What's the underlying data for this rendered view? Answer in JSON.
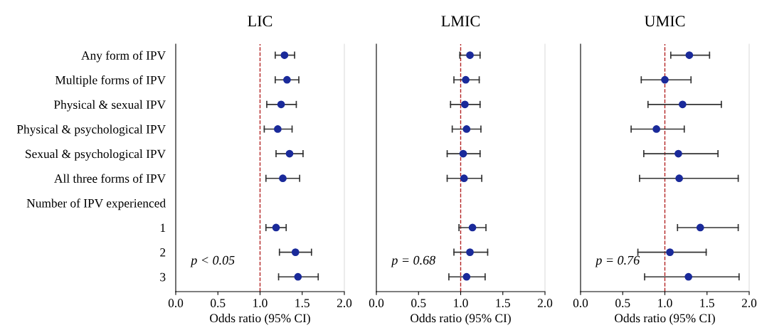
{
  "chart_data": [
    {
      "type": "scatter",
      "title": "LIC",
      "xlabel": "Odds ratio (95% CI)",
      "orientation": "horizontal",
      "marker": "circle",
      "categories": [
        "Any form of IPV",
        "Multiple forms of IPV",
        "Physical & sexual IPV",
        "Physical & psychological IPV",
        "Sexual & psychological IPV",
        "All three forms of IPV",
        "Number of IPV experienced",
        "1",
        "2",
        "3"
      ],
      "series": [
        {
          "color": "#1a2a9a",
          "values": [
            1.29,
            1.32,
            1.25,
            1.21,
            1.35,
            1.27,
            null,
            1.19,
            1.42,
            1.45
          ],
          "errors": [
            [
              1.18,
              1.41
            ],
            [
              1.18,
              1.46
            ],
            [
              1.08,
              1.43
            ],
            [
              1.05,
              1.38
            ],
            [
              1.19,
              1.51
            ],
            [
              1.07,
              1.47
            ],
            null,
            [
              1.07,
              1.31
            ],
            [
              1.23,
              1.61
            ],
            [
              1.22,
              1.69
            ]
          ]
        }
      ],
      "xlim": [
        0,
        2
      ],
      "xticks": [
        {
          "value": 0,
          "label": "0.0"
        },
        {
          "value": 0.5,
          "label": "0.5"
        },
        {
          "value": 1,
          "label": "1.0"
        },
        {
          "value": 1.5,
          "label": "1.5"
        },
        {
          "value": 2,
          "label": "2.0"
        }
      ],
      "ref_lines": [
        {
          "axis": "x",
          "value": 1,
          "color": "#b22222",
          "line_style": "dashed"
        }
      ],
      "annotations": [
        "p < 0.05"
      ],
      "grid": false,
      "legend": false
    },
    {
      "type": "scatter",
      "title": "LMIC",
      "xlabel": "Odds ratio (95% CI)",
      "orientation": "horizontal",
      "marker": "circle",
      "tick_labels": "x",
      "categories": [
        null,
        null,
        null,
        null,
        null,
        null,
        null,
        null,
        null,
        null
      ],
      "series": [
        {
          "color": "#1a2a9a",
          "values": [
            1.11,
            1.06,
            1.05,
            1.07,
            1.03,
            1.04,
            null,
            1.14,
            1.11,
            1.07
          ],
          "errors": [
            [
              0.99,
              1.23
            ],
            [
              0.92,
              1.22
            ],
            [
              0.88,
              1.23
            ],
            [
              0.9,
              1.24
            ],
            [
              0.84,
              1.23
            ],
            [
              0.84,
              1.25
            ],
            null,
            [
              0.98,
              1.3
            ],
            [
              0.92,
              1.32
            ],
            [
              0.86,
              1.29
            ]
          ]
        }
      ],
      "xlim": [
        0,
        2
      ],
      "xticks": [
        {
          "value": 0,
          "label": "0.0"
        },
        {
          "value": 0.5,
          "label": "0.5"
        },
        {
          "value": 1,
          "label": "1.0"
        },
        {
          "value": 1.5,
          "label": "1.5"
        },
        {
          "value": 2,
          "label": "2.0"
        }
      ],
      "ref_lines": [
        {
          "axis": "x",
          "value": 1,
          "color": "#b22222",
          "line_style": "dashed"
        }
      ],
      "annotations": [
        "p = 0.68"
      ],
      "grid": false,
      "legend": false
    },
    {
      "type": "scatter",
      "title": "UMIC",
      "xlabel": "Odds ratio (95% CI)",
      "orientation": "horizontal",
      "marker": "circle",
      "tick_labels": "x",
      "categories": [
        null,
        null,
        null,
        null,
        null,
        null,
        null,
        null,
        null,
        null
      ],
      "series": [
        {
          "color": "#1a2a9a",
          "values": [
            1.29,
            1.0,
            1.21,
            0.9,
            1.16,
            1.17,
            null,
            1.42,
            1.06,
            1.28
          ],
          "errors": [
            [
              1.07,
              1.53
            ],
            [
              0.72,
              1.31
            ],
            [
              0.8,
              1.67
            ],
            [
              0.6,
              1.23
            ],
            [
              0.75,
              1.63
            ],
            [
              0.7,
              1.87
            ],
            null,
            [
              1.15,
              1.87
            ],
            [
              0.68,
              1.49
            ],
            [
              0.76,
              1.88
            ]
          ]
        }
      ],
      "xlim": [
        0,
        2
      ],
      "xticks": [
        {
          "value": 0,
          "label": "0.0"
        },
        {
          "value": 0.5,
          "label": "0.5"
        },
        {
          "value": 1,
          "label": "1.0"
        },
        {
          "value": 1.5,
          "label": "1.5"
        },
        {
          "value": 2,
          "label": "2.0"
        }
      ],
      "ref_lines": [
        {
          "axis": "x",
          "value": 1,
          "color": "#b22222",
          "line_style": "dashed"
        }
      ],
      "annotations": [
        "p = 0.76"
      ],
      "grid": false,
      "legend": false
    }
  ]
}
